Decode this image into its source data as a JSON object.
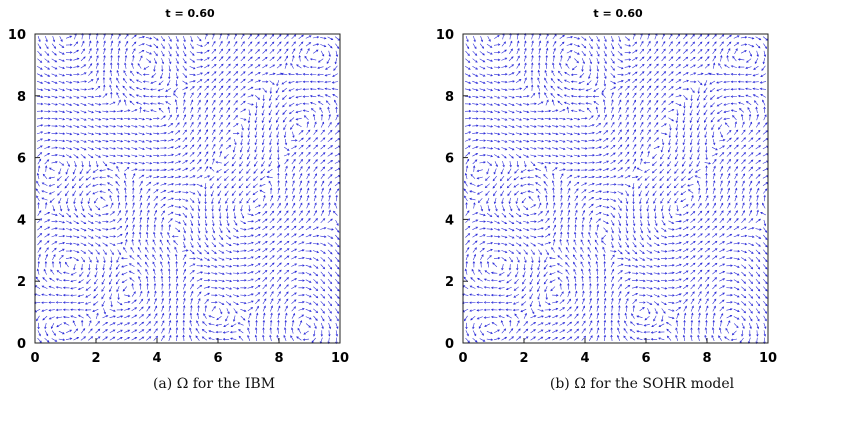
{
  "figure": {
    "panels": [
      {
        "title": "t = 0.60",
        "caption": "(a)  Ω for the IBM"
      },
      {
        "title": "t = 0.60",
        "caption": "(b) Ω for the SOHR model"
      }
    ],
    "arrow_color": "#2b2bd9"
  },
  "chart_data": [
    {
      "type": "quiver",
      "title": "t = 0.60",
      "xlim": [
        0,
        10
      ],
      "ylim": [
        0,
        10
      ],
      "xticks": [
        "0",
        "2",
        "4",
        "6",
        "8",
        "10"
      ],
      "yticks": [
        "0",
        "2",
        "4",
        "6",
        "8",
        "10"
      ],
      "grid": false,
      "series": []
    },
    {
      "type": "quiver",
      "title": "t = 0.60",
      "xlim": [
        0,
        10
      ],
      "ylim": [
        0,
        10
      ],
      "xticks": [
        "0",
        "2",
        "4",
        "6",
        "8",
        "10"
      ],
      "yticks": [
        "0",
        "2",
        "4",
        "6",
        "8",
        "10"
      ],
      "grid": false,
      "series": []
    }
  ]
}
